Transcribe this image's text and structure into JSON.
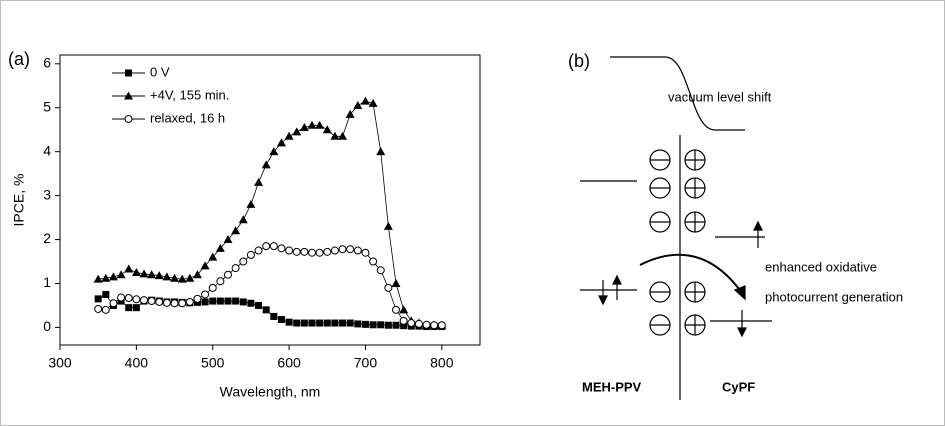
{
  "chart_data": {
    "type": "line",
    "panel_label": "(a)",
    "x_label": "Wavelength, nm",
    "y_label": "IPCE, %",
    "xlim": [
      300,
      850
    ],
    "ylim": [
      -0.4,
      6.2
    ],
    "xticks": [
      300,
      400,
      500,
      600,
      700,
      800
    ],
    "yticks": [
      0,
      1,
      2,
      3,
      4,
      5,
      6
    ],
    "legend": "upper left",
    "x": [
      350,
      360,
      370,
      380,
      390,
      400,
      410,
      420,
      430,
      440,
      450,
      460,
      470,
      480,
      490,
      500,
      510,
      520,
      530,
      540,
      550,
      560,
      570,
      580,
      590,
      600,
      610,
      620,
      630,
      640,
      650,
      660,
      670,
      680,
      690,
      700,
      710,
      720,
      730,
      740,
      750,
      760,
      770,
      780,
      790,
      800
    ],
    "series": [
      {
        "name": "0 V",
        "color": "#000000",
        "marker": "square",
        "values": [
          0.65,
          0.75,
          0.5,
          0.6,
          0.45,
          0.45,
          0.6,
          0.62,
          0.6,
          0.58,
          0.58,
          0.57,
          0.56,
          0.57,
          0.58,
          0.6,
          0.6,
          0.6,
          0.6,
          0.58,
          0.55,
          0.5,
          0.4,
          0.25,
          0.18,
          0.12,
          0.1,
          0.1,
          0.1,
          0.1,
          0.1,
          0.1,
          0.1,
          0.1,
          0.08,
          0.07,
          0.06,
          0.06,
          0.05,
          0.05,
          0.04,
          0.03,
          0.03,
          0.02,
          0.02,
          0.02
        ]
      },
      {
        "name": "+4V, 155 min.",
        "color": "#000000",
        "marker": "triangle",
        "values": [
          1.1,
          1.12,
          1.15,
          1.2,
          1.33,
          1.25,
          1.22,
          1.2,
          1.18,
          1.15,
          1.12,
          1.1,
          1.12,
          1.2,
          1.4,
          1.6,
          1.8,
          2.0,
          2.2,
          2.45,
          2.8,
          3.3,
          3.7,
          4.0,
          4.2,
          4.35,
          4.45,
          4.55,
          4.6,
          4.6,
          4.5,
          4.35,
          4.35,
          4.85,
          5.05,
          5.15,
          5.1,
          4.0,
          2.3,
          1.0,
          0.4,
          0.15,
          0.1,
          0.05,
          0.05,
          0.05
        ]
      },
      {
        "name": "relaxed, 16 h",
        "color": "#000000",
        "marker": "open-circle",
        "values": [
          0.42,
          0.4,
          0.55,
          0.68,
          0.67,
          0.64,
          0.62,
          0.6,
          0.58,
          0.56,
          0.55,
          0.55,
          0.58,
          0.65,
          0.75,
          0.9,
          1.05,
          1.2,
          1.35,
          1.5,
          1.65,
          1.75,
          1.85,
          1.85,
          1.8,
          1.75,
          1.72,
          1.72,
          1.7,
          1.7,
          1.72,
          1.75,
          1.78,
          1.78,
          1.75,
          1.7,
          1.5,
          1.3,
          0.9,
          0.4,
          0.15,
          0.1,
          0.08,
          0.06,
          0.05,
          0.05
        ]
      }
    ]
  },
  "diagram": {
    "panel_label": "(b)",
    "vacuum": "vacuum level shift",
    "process_line1": "enhanced oxidative",
    "process_line2": "photocurrent generation",
    "donor": "MEH-PPV",
    "acceptor": "CyPF"
  }
}
